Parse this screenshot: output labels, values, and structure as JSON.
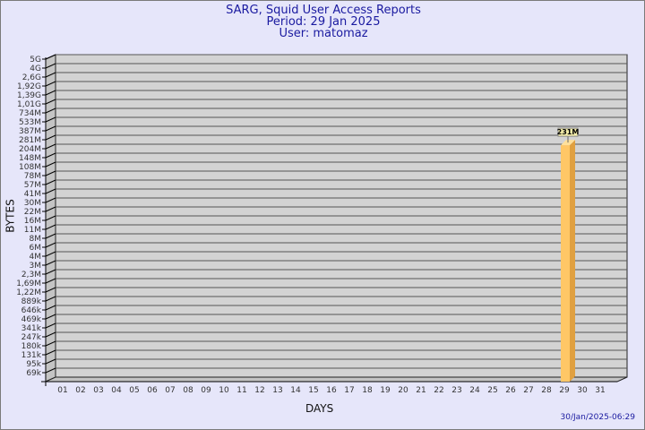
{
  "chart_data": {
    "type": "bar",
    "title": "SARG, Squid User Access Reports",
    "subtitle_period": "Period: 29 Jan 2025",
    "subtitle_user": "User: matomaz",
    "xlabel": "DAYS",
    "ylabel": "BYTES",
    "y_scale": "log",
    "grid": true,
    "y_ticks": [
      "5G",
      "4G",
      "2,6G",
      "1,92G",
      "1,39G",
      "1,01G",
      "734M",
      "533M",
      "387M",
      "281M",
      "204M",
      "148M",
      "108M",
      "78M",
      "57M",
      "41M",
      "30M",
      "22M",
      "16M",
      "11M",
      "8M",
      "6M",
      "4M",
      "3M",
      "2,3M",
      "1,69M",
      "1,22M",
      "889k",
      "646k",
      "469k",
      "341k",
      "247k",
      "180k",
      "131k",
      "95k",
      "69k"
    ],
    "categories": [
      "01",
      "02",
      "03",
      "04",
      "05",
      "06",
      "07",
      "08",
      "09",
      "10",
      "11",
      "12",
      "13",
      "14",
      "15",
      "16",
      "17",
      "18",
      "19",
      "20",
      "21",
      "22",
      "23",
      "24",
      "25",
      "26",
      "27",
      "28",
      "29",
      "30",
      "31"
    ],
    "series": [
      {
        "values": [
          null,
          null,
          null,
          null,
          null,
          null,
          null,
          null,
          null,
          null,
          null,
          null,
          null,
          null,
          null,
          null,
          null,
          null,
          null,
          null,
          null,
          null,
          null,
          null,
          null,
          null,
          null,
          null,
          "231M",
          null,
          null
        ]
      }
    ],
    "colors": {
      "background": "#e6e6fa",
      "plot": "#d3d3d3",
      "bar": "#ffc766",
      "bar_side": "#e0a040",
      "title": "#1a1aa0"
    }
  },
  "timestamp": "30/Jan/2025-06:29"
}
